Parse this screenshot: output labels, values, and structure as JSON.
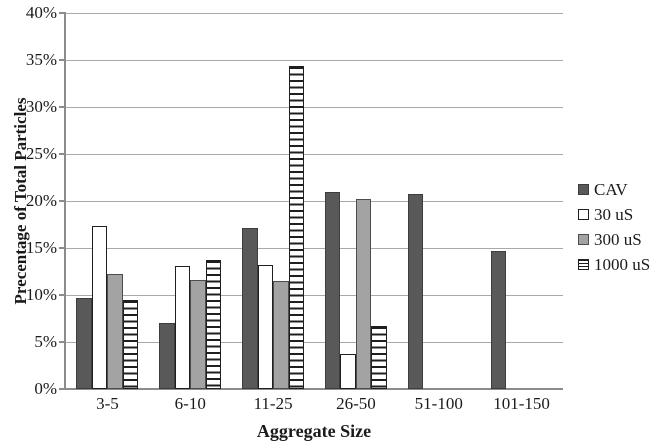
{
  "chart_data": {
    "type": "bar",
    "title": "",
    "xlabel": "Aggregate Size",
    "ylabel": "Precentage of Total Particles",
    "categories": [
      "3-5",
      "6-10",
      "11-25",
      "26-50",
      "51-100",
      "101-150"
    ],
    "series": [
      {
        "name": "CAV",
        "values": [
          9.7,
          7.0,
          17.1,
          21.0,
          20.7,
          14.7
        ],
        "fill": "#595959",
        "border": "#3d3d3d",
        "pattern": "solid"
      },
      {
        "name": "30 uS",
        "values": [
          17.3,
          13.1,
          13.2,
          3.7,
          0,
          0
        ],
        "fill": "#ffffff",
        "border": "#1f1f1f",
        "pattern": "solid"
      },
      {
        "name": "300 uS",
        "values": [
          12.2,
          11.6,
          11.5,
          20.2,
          0,
          0
        ],
        "fill": "#a3a3a3",
        "border": "#4d4d4d",
        "pattern": "solid"
      },
      {
        "name": "1000 uS",
        "values": [
          9.5,
          13.7,
          34.4,
          6.7,
          0,
          0
        ],
        "fill": "#ffffff",
        "border": "#1f1f1f",
        "pattern": "hstripes",
        "stripe_color": "#1f1f1f"
      }
    ],
    "ylim": [
      0,
      40
    ],
    "ytick_step": 5,
    "yticks": [
      "0%",
      "5%",
      "10%",
      "15%",
      "20%",
      "25%",
      "30%",
      "35%",
      "40%"
    ],
    "grid": true,
    "legend_position": "right",
    "colors": {
      "gridline": "#a9a9a9",
      "axis": "#8c8c8c",
      "text": "#1a1a1a"
    }
  }
}
